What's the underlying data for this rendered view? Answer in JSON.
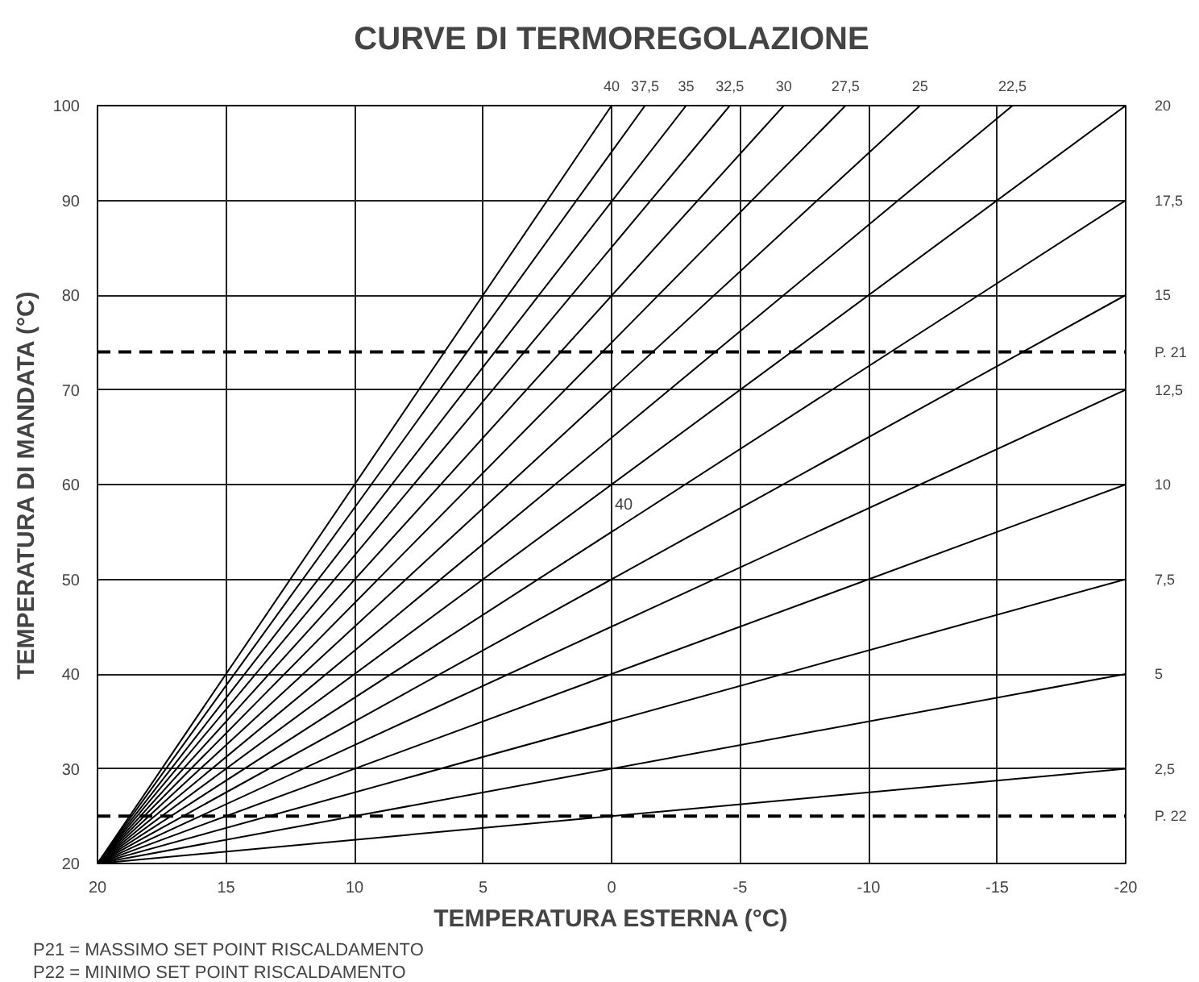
{
  "chart_data": {
    "type": "line",
    "title": "CURVE DI TERMOREGOLAZIONE",
    "xlabel": "TEMPERATURA ESTERNA (°C)",
    "ylabel": "TEMPERATURA DI MANDATA (°C)",
    "xlim": [
      20,
      -20
    ],
    "ylim": [
      20,
      100
    ],
    "xticks": [
      20,
      15,
      10,
      5,
      0,
      -5,
      -10,
      -15,
      -20
    ],
    "yticks": [
      20,
      30,
      40,
      50,
      60,
      70,
      80,
      90,
      100
    ],
    "grid": true,
    "line_style": "solid",
    "marker": "none",
    "series": [
      {
        "name": "40",
        "color": "#000000",
        "x": [
          20,
          0
        ],
        "values": [
          20,
          100
        ]
      },
      {
        "name": "37,5",
        "color": "#000000",
        "x": [
          20,
          -1.3
        ],
        "values": [
          20,
          100
        ]
      },
      {
        "name": "35",
        "color": "#000000",
        "x": [
          20,
          -2.9
        ],
        "values": [
          20,
          100
        ]
      },
      {
        "name": "32,5",
        "color": "#000000",
        "x": [
          20,
          -4.6
        ],
        "values": [
          20,
          100
        ]
      },
      {
        "name": "30",
        "color": "#000000",
        "x": [
          20,
          -6.7
        ],
        "values": [
          20,
          100
        ]
      },
      {
        "name": "27,5",
        "color": "#000000",
        "x": [
          20,
          -9.1
        ],
        "values": [
          20,
          100
        ]
      },
      {
        "name": "25",
        "color": "#000000",
        "x": [
          20,
          -12
        ],
        "values": [
          20,
          100
        ]
      },
      {
        "name": "22,5",
        "color": "#000000",
        "x": [
          20,
          -15.6
        ],
        "values": [
          20,
          100
        ]
      },
      {
        "name": "20",
        "color": "#000000",
        "x": [
          20,
          -20
        ],
        "values": [
          20,
          100
        ]
      },
      {
        "name": "17,5",
        "color": "#000000",
        "x": [
          20,
          -20
        ],
        "values": [
          20,
          90
        ]
      },
      {
        "name": "15",
        "color": "#000000",
        "x": [
          20,
          -20
        ],
        "values": [
          20,
          80
        ]
      },
      {
        "name": "12,5",
        "color": "#000000",
        "x": [
          20,
          -20
        ],
        "values": [
          20,
          70
        ]
      },
      {
        "name": "10",
        "color": "#000000",
        "x": [
          20,
          -20
        ],
        "values": [
          20,
          60
        ]
      },
      {
        "name": "7,5",
        "color": "#000000",
        "x": [
          20,
          -20
        ],
        "values": [
          20,
          50
        ]
      },
      {
        "name": "5",
        "color": "#000000",
        "x": [
          20,
          -20
        ],
        "values": [
          20,
          40
        ]
      },
      {
        "name": "2,5",
        "color": "#000000",
        "x": [
          20,
          -20
        ],
        "values": [
          20,
          30
        ]
      }
    ],
    "ref_lines": [
      {
        "axis": "y",
        "value": 74,
        "label": "P. 21",
        "color": "#000000",
        "line_style": "dashed"
      },
      {
        "axis": "y",
        "value": 25,
        "label": "P. 22",
        "color": "#000000",
        "line_style": "dashed"
      }
    ],
    "annotations": [
      "40",
      "P21 = MASSIMO SET POINT RISCALDAMENTO",
      "P22 = MINIMO SET POINT RISCALDAMENTO"
    ]
  }
}
